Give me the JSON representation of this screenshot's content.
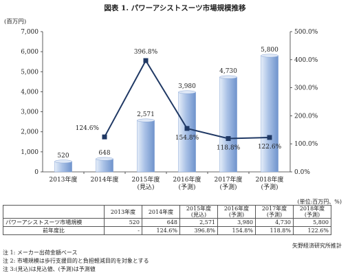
{
  "title": "図表 1. パワーアシストスーツ市場規模推移",
  "chart_data": {
    "type": "bar",
    "categories": [
      "2013年度",
      "2014年度",
      "2015年度\n(見込)",
      "2016年度\n(予測)",
      "2017年度\n(予測)",
      "2018年度\n(予測)"
    ],
    "series": [
      {
        "name": "パワーアシストスーツ市場規模",
        "type": "bar",
        "axis": "left",
        "values": [
          520,
          648,
          2571,
          3980,
          4730,
          5800
        ],
        "labels": [
          "520",
          "648",
          "2,571",
          "3,980",
          "4,730",
          "5,800"
        ]
      },
      {
        "name": "前年度比",
        "type": "line",
        "axis": "right",
        "values": [
          null,
          124.6,
          396.8,
          154.8,
          118.8,
          122.6
        ],
        "labels": [
          "",
          "124.6%",
          "396.8%",
          "154.8%",
          "118.8%",
          "122.6%"
        ]
      }
    ],
    "ylabel": "(百万円)",
    "ylim": [
      0,
      7000
    ],
    "yticks": [
      "0",
      "1,000",
      "2,000",
      "3,000",
      "4,000",
      "5,000",
      "6,000",
      "7,000"
    ],
    "y2lim": [
      0,
      500
    ],
    "y2ticks": [
      "0.0%",
      "100.0%",
      "200.0%",
      "300.0%",
      "400.0%",
      "500.0%"
    ],
    "colors": {
      "bar_light": "#e6eef9",
      "bar_mid": "#a9c1e6",
      "bar_dark": "#6f93cc",
      "line": "#1f3864",
      "marker": "#1f3864"
    }
  },
  "table": {
    "unit_note": "(単位:百万円、%)",
    "headers": [
      "",
      "2013年度",
      "2014年度",
      "2015年度\n(見込)",
      "2016年度\n(予測)",
      "2017年度\n(予測)",
      "2018年度\n(予測)"
    ],
    "rows": [
      {
        "label": "パワーアシストスーツ市場規模",
        "cells": [
          "520",
          "648",
          "2,571",
          "3,980",
          "4,730",
          "5,800"
        ]
      },
      {
        "label": "前年度比",
        "cells": [
          "-",
          "124.6%",
          "396.8%",
          "154.8%",
          "118.8%",
          "122.6%"
        ]
      }
    ]
  },
  "source": "矢野経済研究所推計",
  "notes": [
    "注 1: メーカー出荷金額ベース",
    "注 2: 市場規模は歩行支援目的と負担軽減目的を対象とする",
    "注 3:(見込)は見込値、(予測)は予測値"
  ]
}
